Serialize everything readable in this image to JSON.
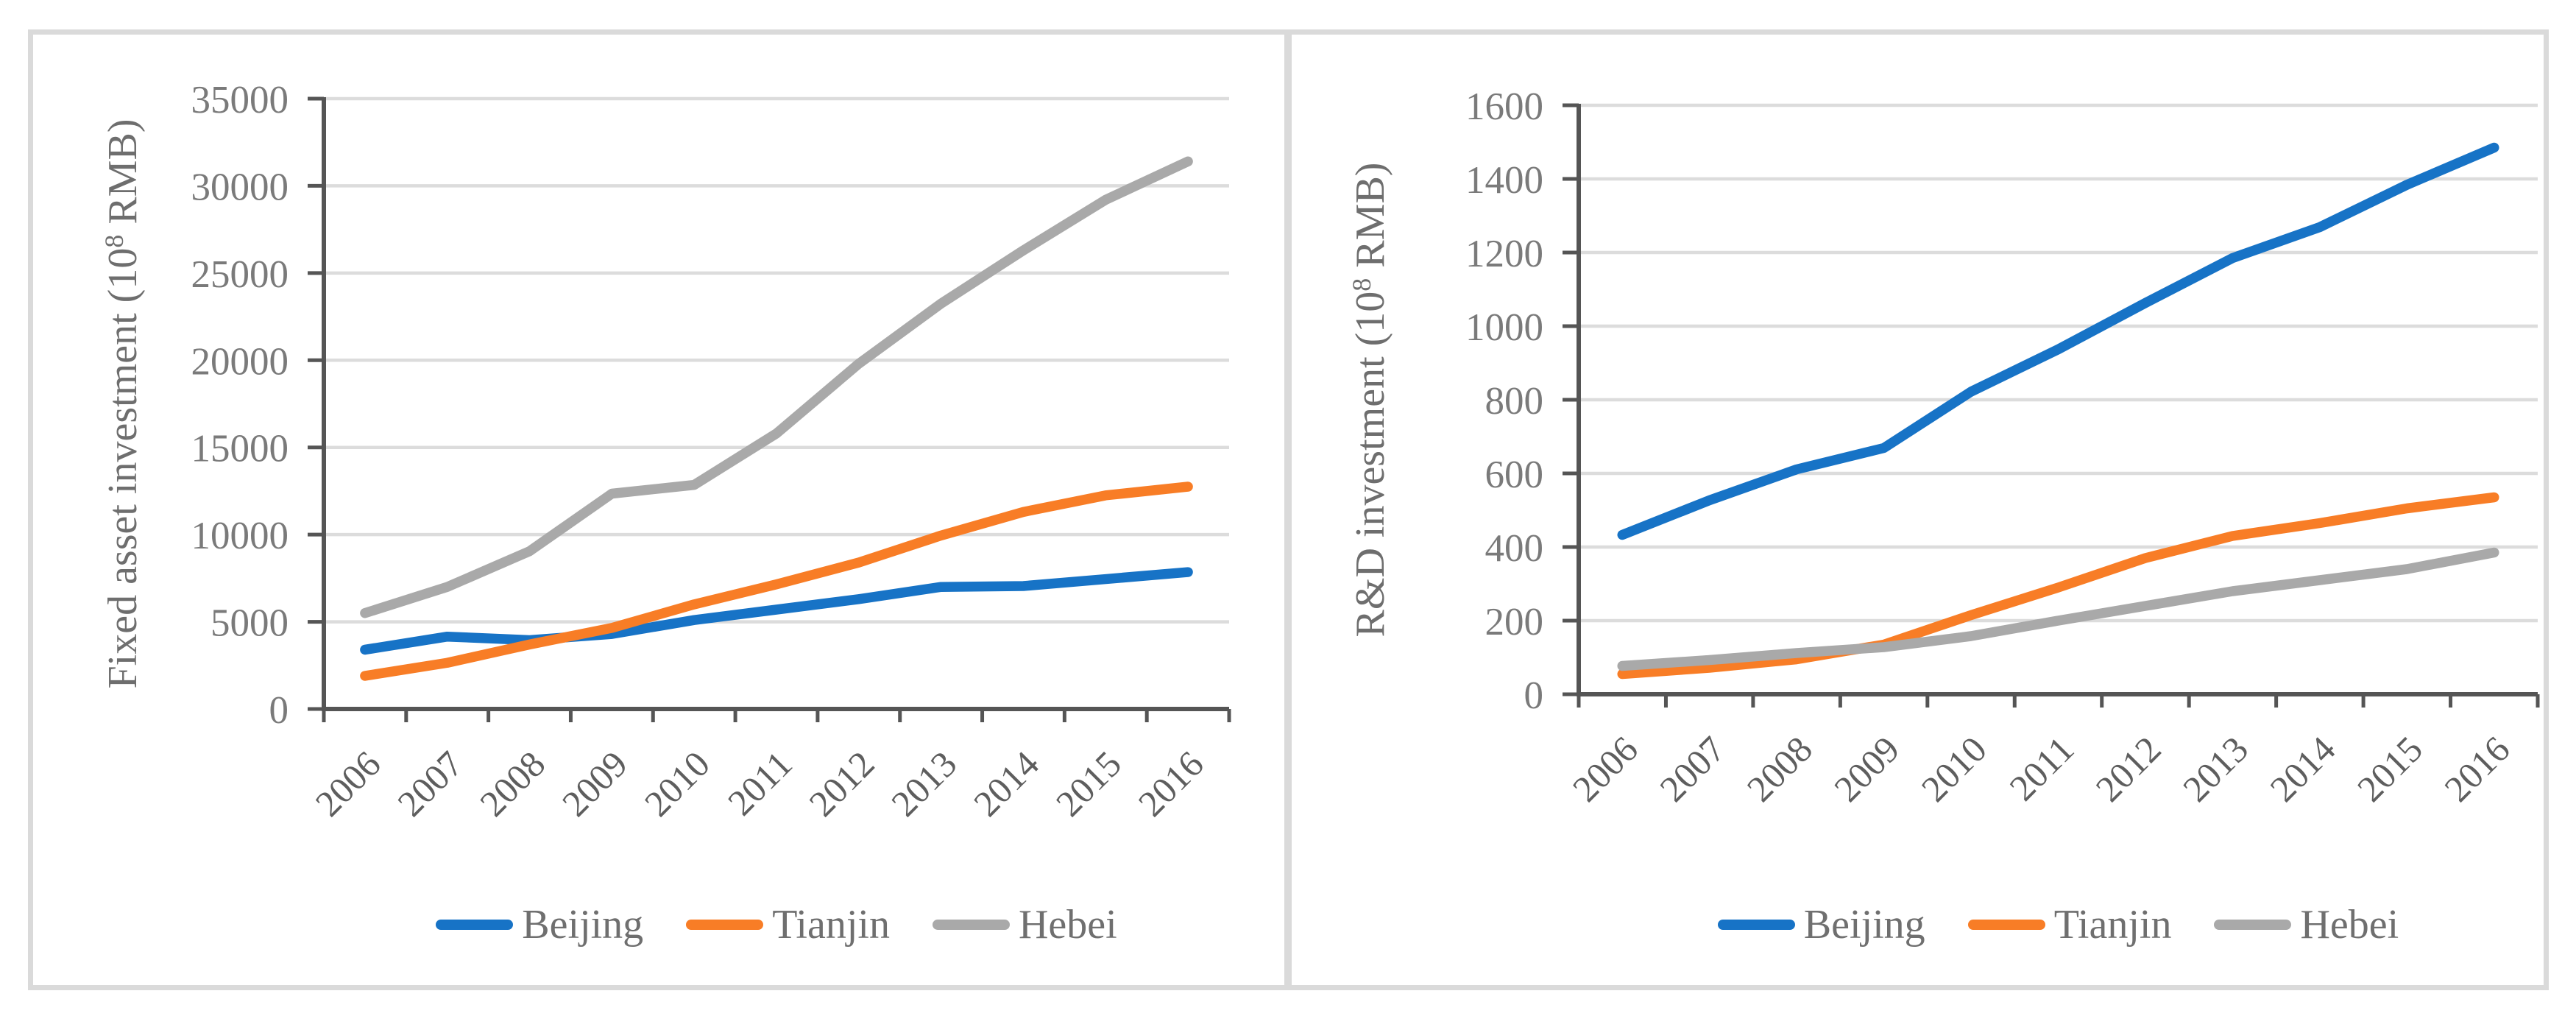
{
  "figure": {
    "border_color": "#DADADA",
    "background": "#ffffff",
    "grid_color": "#DCDCDC",
    "axis_color": "#555555",
    "tick_label_color": "#7A7A7A",
    "year_label_color": "#5E5E5E",
    "axis_title_color": "#6E6E6E",
    "legend_text_color": "#6F6F6F"
  },
  "chart_data": [
    {
      "type": "line",
      "title": "",
      "xlabel": "",
      "ylabel": "Fixed asset investment (10^8 RMB)",
      "ylabel_parts": {
        "pre": "Fixed asset investment (10",
        "sup": "8",
        "post": " RMB)"
      },
      "categories": [
        "2006",
        "2007",
        "2008",
        "2009",
        "2010",
        "2011",
        "2012",
        "2013",
        "2014",
        "2015",
        "2016"
      ],
      "ylim": [
        0,
        35000
      ],
      "ystep": 5000,
      "yticks": [
        0,
        5000,
        10000,
        15000,
        20000,
        25000,
        30000,
        35000
      ],
      "grid": true,
      "legend_position": "bottom",
      "series": [
        {
          "name": "Beijing",
          "color": "#1773C6",
          "values": [
            3400,
            4150,
            3950,
            4300,
            5100,
            5700,
            6300,
            7000,
            7050,
            7450,
            7850
          ]
        },
        {
          "name": "Tianjin",
          "color": "#F87D26",
          "values": [
            1900,
            2650,
            3700,
            4650,
            6000,
            7150,
            8400,
            9950,
            11300,
            12250,
            12750
          ]
        },
        {
          "name": "Hebei",
          "color": "#A9A9A9",
          "values": [
            5500,
            7000,
            9050,
            12350,
            12850,
            15800,
            19800,
            23250,
            26300,
            29200,
            31400
          ]
        }
      ]
    },
    {
      "type": "line",
      "title": "",
      "xlabel": "",
      "ylabel": "R&D investment (10^8 RMB)",
      "ylabel_parts": {
        "pre": "R&D investment (10",
        "sup": "8",
        "post": " RMB)"
      },
      "categories": [
        "2006",
        "2007",
        "2008",
        "2009",
        "2010",
        "2011",
        "2012",
        "2013",
        "2014",
        "2015",
        "2016"
      ],
      "ylim": [
        0,
        1600
      ],
      "ystep": 200,
      "yticks": [
        0,
        200,
        400,
        600,
        800,
        1000,
        1200,
        1400,
        1600
      ],
      "grid": true,
      "legend_position": "bottom",
      "series": [
        {
          "name": "Beijing",
          "color": "#1773C6",
          "values": [
            433,
            527,
            611,
            669,
            822,
            937,
            1063,
            1185,
            1269,
            1384,
            1485
          ]
        },
        {
          "name": "Tianjin",
          "color": "#F87D26",
          "values": [
            55,
            72,
            95,
            135,
            215,
            290,
            370,
            430,
            465,
            505,
            535
          ]
        },
        {
          "name": "Hebei",
          "color": "#A9A9A9",
          "values": [
            77,
            93,
            112,
            128,
            158,
            200,
            240,
            280,
            310,
            340,
            385
          ]
        }
      ]
    }
  ]
}
